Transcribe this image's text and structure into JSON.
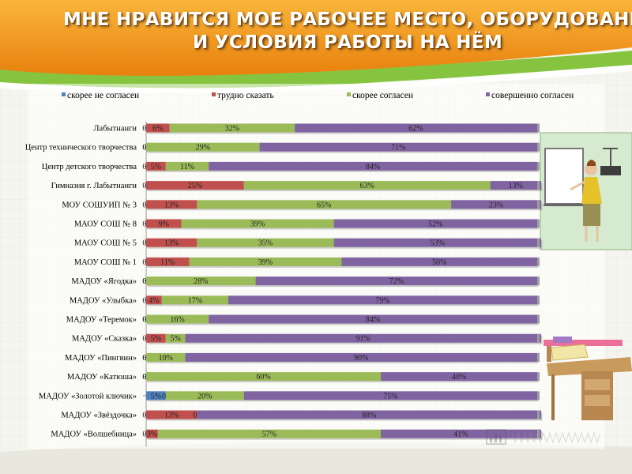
{
  "slide": {
    "title_line1": "МНЕ НРАВИТСЯ МОЕ РАБОЧЕЕ МЕСТО, ОБОРУДОВАНИЕ",
    "title_line2": "И УСЛОВИЯ РАБОТЫ НА НЁМ"
  },
  "colors": {
    "title_band": "#f39a1b",
    "swoosh_green": "#86c440",
    "series": [
      "#4f81bd",
      "#c0504d",
      "#9bbb59",
      "#8064a2"
    ]
  },
  "chart_data": {
    "type": "bar",
    "orientation": "horizontal",
    "stacked": true,
    "legend_position": "top",
    "grid": false,
    "xlim": [
      0,
      100
    ],
    "categories": [
      "Лабытнанги",
      "Центр технического творчества",
      "Центр детского творчества",
      "Гимназия г. Лабытнанги",
      "МОУ СОШУИП № 3",
      "МАОУ СОШ № 8",
      "МАОУ СОШ № 5",
      "МАОУ СОШ № 1",
      "МАДОУ «Ягодка»",
      "МАДОУ «Улыбка»",
      "МАДОУ «Теремок»",
      "МАДОУ «Сказка»",
      "МАДОУ «Пингвин»",
      "МАДОУ «Катюша»",
      "МАДОУ «Золотой ключик»",
      "МАДОУ «Звёздочка»",
      "МАДОУ «Волшебница»"
    ],
    "series": [
      {
        "name": "скорее не согласен",
        "values": [
          0,
          0,
          0,
          0,
          0,
          0,
          0,
          0,
          0,
          0,
          0,
          0,
          0,
          0,
          5,
          0,
          0
        ],
        "labels": [
          "0%",
          "0%",
          "0%",
          "0%",
          "0%",
          "0%",
          "0%",
          "0%",
          "0%",
          "0%",
          "0%",
          "0%",
          "0%",
          "0%",
          "5%",
          "0%",
          "0%"
        ]
      },
      {
        "name": "трудно сказать",
        "values": [
          6,
          0,
          5,
          25,
          13,
          9,
          13,
          11,
          0,
          4,
          0,
          5,
          0,
          0,
          0,
          13,
          3
        ],
        "labels": [
          "6%",
          "0%",
          "5%",
          "25%",
          "13%",
          "9%",
          "13%",
          "11%",
          "0%",
          "4%",
          "0%",
          "5%",
          "0%",
          "0%",
          "0%",
          "13%",
          "3%"
        ]
      },
      {
        "name": "скорее согласен",
        "values": [
          32,
          29,
          11,
          63,
          65,
          39,
          35,
          39,
          28,
          17,
          16,
          5,
          10,
          60,
          20,
          0,
          57
        ],
        "labels": [
          "32%",
          "29%",
          "11%",
          "63%",
          "65%",
          "39%",
          "35%",
          "39%",
          "28%",
          "17%",
          "16%",
          "5%",
          "10%",
          "60%",
          "20%",
          "0%",
          "57%"
        ]
      },
      {
        "name": "совершенно согласен",
        "values": [
          62,
          71,
          84,
          13,
          23,
          52,
          53,
          50,
          72,
          79,
          84,
          91,
          90,
          40,
          75,
          88,
          41
        ],
        "labels": [
          "62%",
          "71%",
          "84%",
          "13%",
          "23%",
          "52%",
          "53%",
          "50%",
          "72%",
          "79%",
          "84%",
          "91%",
          "90%",
          "40%",
          "75%",
          "88%",
          "41%"
        ]
      }
    ]
  }
}
